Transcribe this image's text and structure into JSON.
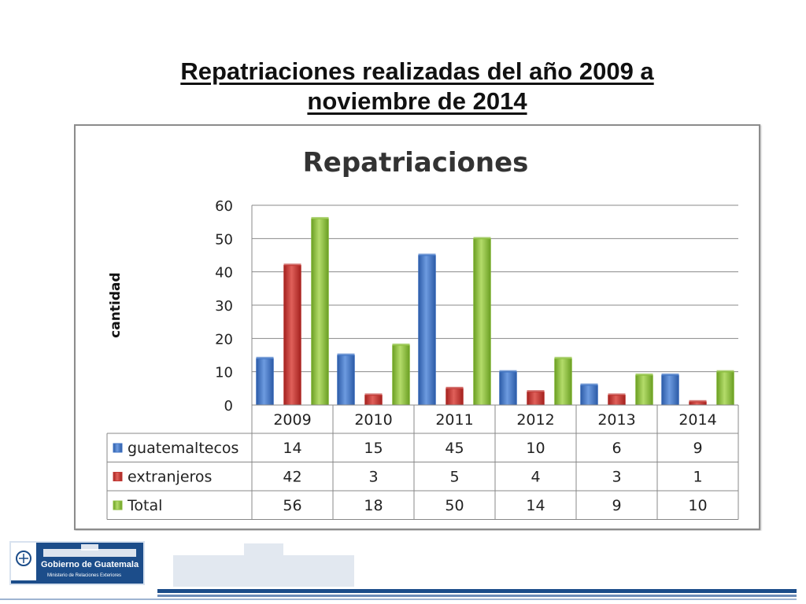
{
  "slide": {
    "title_line1": "Repatriaciones realizadas del año 2009 a",
    "title_line2": "noviembre de 2014"
  },
  "footer": {
    "logo_name": "Gobierno de Guatemala",
    "logo_sub": "Ministerio de Relaciones Exteriores",
    "brand_color": "#1c4d8a"
  },
  "chart_data": {
    "type": "bar",
    "title": "Repatriaciones",
    "ylabel": "cantidad",
    "xlabel": "",
    "ylim": [
      0,
      60
    ],
    "yticks": [
      0,
      10,
      20,
      30,
      40,
      50,
      60
    ],
    "grid": true,
    "legend": "data-table",
    "categories": [
      "2009",
      "2010",
      "2011",
      "2012",
      "2013",
      "2014"
    ],
    "series": [
      {
        "name": "guatemaltecos",
        "color": "#3f73c4",
        "values": [
          14,
          15,
          45,
          10,
          6,
          9
        ]
      },
      {
        "name": "extranjeros",
        "color": "#c23a36",
        "values": [
          42,
          3,
          5,
          4,
          3,
          1
        ]
      },
      {
        "name": "Total",
        "color": "#8cbf3c",
        "values": [
          56,
          18,
          50,
          14,
          9,
          10
        ]
      }
    ]
  }
}
